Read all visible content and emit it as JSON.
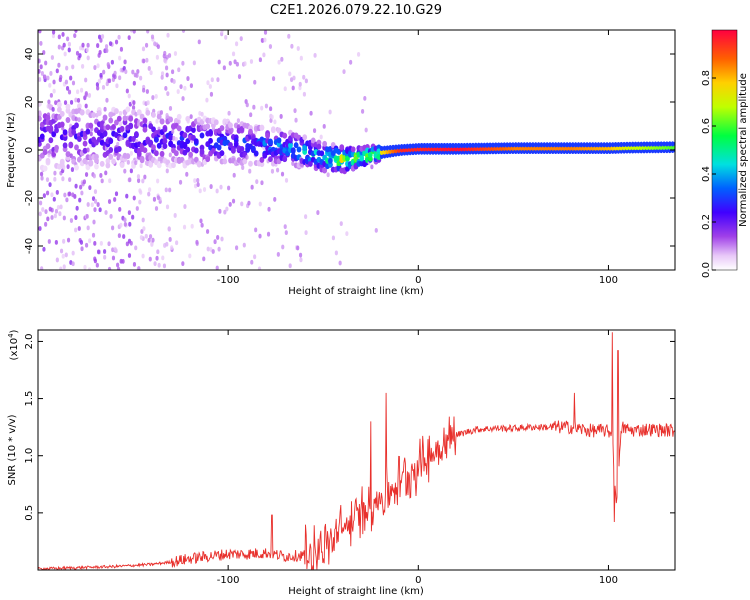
{
  "title": "C2E1.2026.079.22.10.G29",
  "colors": {
    "line": "#e8302c",
    "background": "#ffffff",
    "axis": "#000000"
  },
  "chart_data": [
    {
      "type": "heatmap",
      "name": "spectrogram",
      "xlabel": "Height of straight line (km)",
      "ylabel": "Frequency (Hz)",
      "xlim": [
        -200,
        135
      ],
      "ylim": [
        -50,
        50
      ],
      "xticks": [
        -100,
        0,
        100
      ],
      "yticks": [
        -40,
        -20,
        0,
        20,
        40
      ],
      "colorbar": {
        "label": "Normalized spectral amplitude",
        "range": [
          0,
          1
        ],
        "ticks": [
          "0.0",
          "0.2",
          "0.4",
          "0.6",
          "0.8"
        ],
        "tick_values": [
          0.0,
          0.2,
          0.4,
          0.6,
          0.8
        ],
        "colormap_stops": [
          {
            "v": 0.0,
            "c": "#ffffff"
          },
          {
            "v": 0.06,
            "c": "#e8c8f8"
          },
          {
            "v": 0.14,
            "c": "#a040e8"
          },
          {
            "v": 0.24,
            "c": "#4000ff"
          },
          {
            "v": 0.34,
            "c": "#0060ff"
          },
          {
            "v": 0.44,
            "c": "#00e0e0"
          },
          {
            "v": 0.56,
            "c": "#00ff40"
          },
          {
            "v": 0.68,
            "c": "#c0ff00"
          },
          {
            "v": 0.78,
            "c": "#ffd000"
          },
          {
            "v": 0.88,
            "c": "#ff6000"
          },
          {
            "v": 1.0,
            "c": "#ff0040"
          }
        ]
      },
      "ridge": {
        "x": [
          -200,
          -150,
          -100,
          -70,
          -50,
          -40,
          -30,
          -20,
          -10,
          0,
          20,
          50,
          80,
          100,
          110,
          135
        ],
        "freq": [
          6,
          5,
          3,
          1,
          -3,
          -4,
          -3,
          -1,
          0,
          0.5,
          0.5,
          0.8,
          0.8,
          0.8,
          1,
          1.2
        ],
        "amplitude": [
          0.22,
          0.25,
          0.3,
          0.4,
          0.5,
          0.75,
          0.7,
          0.75,
          0.95,
          0.95,
          0.98,
          0.85,
          0.85,
          0.8,
          0.7,
          0.6
        ],
        "half_width": [
          14,
          12,
          9,
          7,
          6,
          5,
          4,
          3,
          2.5,
          2.5,
          2.5,
          2.5,
          2.5,
          2.5,
          2.5,
          2.5
        ]
      }
    },
    {
      "type": "line",
      "name": "snr",
      "xlabel": "Height of straight line (km)",
      "ylabel": "SNR (10 * v/v)",
      "yscale_label": "(x10",
      "yscale_exponent": "4",
      "yscale_close": ")",
      "xlim": [
        -200,
        135
      ],
      "ylim": [
        0,
        2.1
      ],
      "xticks": [
        -100,
        0,
        100
      ],
      "yticks": [
        "0.5",
        "1.0",
        "1.5",
        "2.0"
      ],
      "ytick_values": [
        0.5,
        1.0,
        1.5,
        2.0
      ],
      "series": [
        {
          "name": "SNR",
          "x": [
            -200,
            -180,
            -160,
            -140,
            -130,
            -120,
            -110,
            -100,
            -90,
            -80,
            -70,
            -60,
            -50,
            -45,
            -40,
            -35,
            -30,
            -25,
            -20,
            -15,
            -10,
            -5,
            0,
            5,
            10,
            15,
            20,
            30,
            40,
            50,
            60,
            70,
            80,
            90,
            98,
            102,
            104,
            107,
            112,
            120,
            135
          ],
          "y": [
            0.01,
            0.02,
            0.03,
            0.05,
            0.07,
            0.1,
            0.12,
            0.14,
            0.14,
            0.15,
            0.12,
            0.13,
            0.2,
            0.25,
            0.35,
            0.42,
            0.5,
            0.58,
            0.62,
            0.7,
            0.78,
            0.85,
            0.92,
            0.98,
            1.05,
            1.12,
            1.18,
            1.23,
            1.24,
            1.24,
            1.25,
            1.25,
            1.25,
            1.22,
            1.22,
            1.2,
            0.55,
            1.25,
            1.22,
            1.23,
            1.22
          ]
        }
      ],
      "spikes": [
        {
          "x": -77,
          "y": 0.48
        },
        {
          "x": -17,
          "y": 1.55
        },
        {
          "x": -25,
          "y": 1.3
        },
        {
          "x": 82,
          "y": 1.55
        },
        {
          "x": 102,
          "y": 2.08
        },
        {
          "x": 105,
          "y": 1.92
        },
        {
          "x": 103,
          "y": 0.42
        }
      ]
    }
  ]
}
